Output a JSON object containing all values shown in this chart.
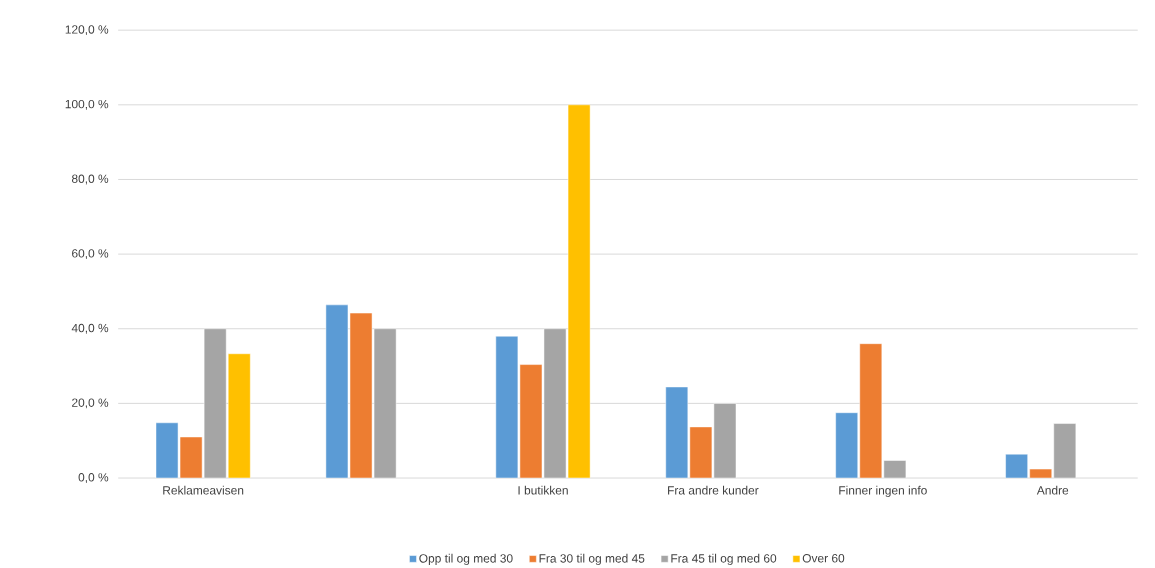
{
  "chart_data": {
    "type": "bar",
    "categories": [
      "Reklameavisen",
      null,
      "I butikken",
      "Fra andre kunder",
      "Finner ingen info",
      "Andre"
    ],
    "series": [
      {
        "name": "Opp til og med 30",
        "color": "#5b9bd5",
        "values": [
          14.8,
          46.4,
          38.0,
          24.4,
          17.5,
          6.4
        ]
      },
      {
        "name": "Fra 30 til og med 45",
        "color": "#ed7d31",
        "values": [
          11.0,
          44.2,
          30.4,
          13.7,
          36.0,
          2.4
        ]
      },
      {
        "name": "Fra 45 til og med 60",
        "color": "#a5a5a5",
        "values": [
          40.0,
          40.0,
          40.0,
          20.0,
          4.7,
          14.6
        ]
      },
      {
        "name": "Over 60",
        "color": "#ffc000",
        "values": [
          33.3,
          null,
          100.0,
          null,
          null,
          null
        ]
      }
    ],
    "ylim": [
      0,
      120
    ],
    "yticks": [
      {
        "value": 0,
        "label": "0,0 %"
      },
      {
        "value": 20,
        "label": "20,0 %"
      },
      {
        "value": 40,
        "label": "40,0 %"
      },
      {
        "value": 60,
        "label": "60,0 %"
      },
      {
        "value": 80,
        "label": "80,0 %"
      },
      {
        "value": 100,
        "label": "100,0 %"
      },
      {
        "value": 120,
        "label": "120,0 %"
      }
    ],
    "grid": "y",
    "legend": "bottom"
  }
}
